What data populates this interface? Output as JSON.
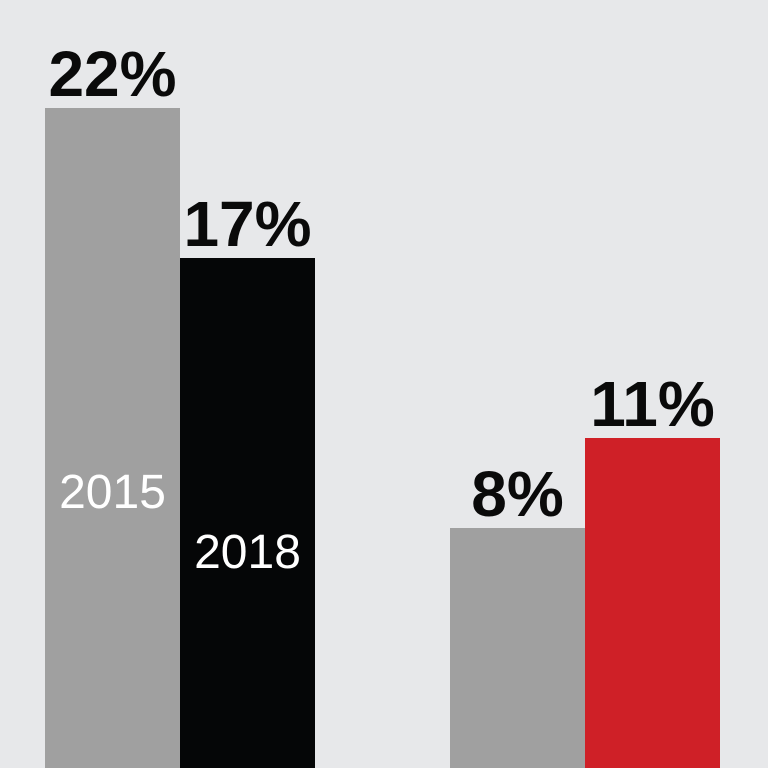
{
  "chart_data": {
    "type": "bar",
    "groups": [
      {
        "bars": [
          {
            "value": 22,
            "label": "22%",
            "year_label": "2015",
            "color": "#a0a0a0"
          },
          {
            "value": 17,
            "label": "17%",
            "year_label": "2018",
            "color": "#050607"
          }
        ]
      },
      {
        "bars": [
          {
            "value": 8,
            "label": "8%",
            "year_label": "",
            "color": "#a0a0a0"
          },
          {
            "value": 11,
            "label": "11%",
            "year_label": "",
            "color": "#cf2027"
          }
        ]
      }
    ],
    "title": "",
    "xlabel": "",
    "ylabel": "",
    "ylim": [
      0,
      22
    ],
    "grid": false,
    "legend": "none"
  },
  "colors": {
    "background": "#e7e8ea",
    "value_text": "#0a0a0a",
    "year_text": "#ffffff"
  }
}
